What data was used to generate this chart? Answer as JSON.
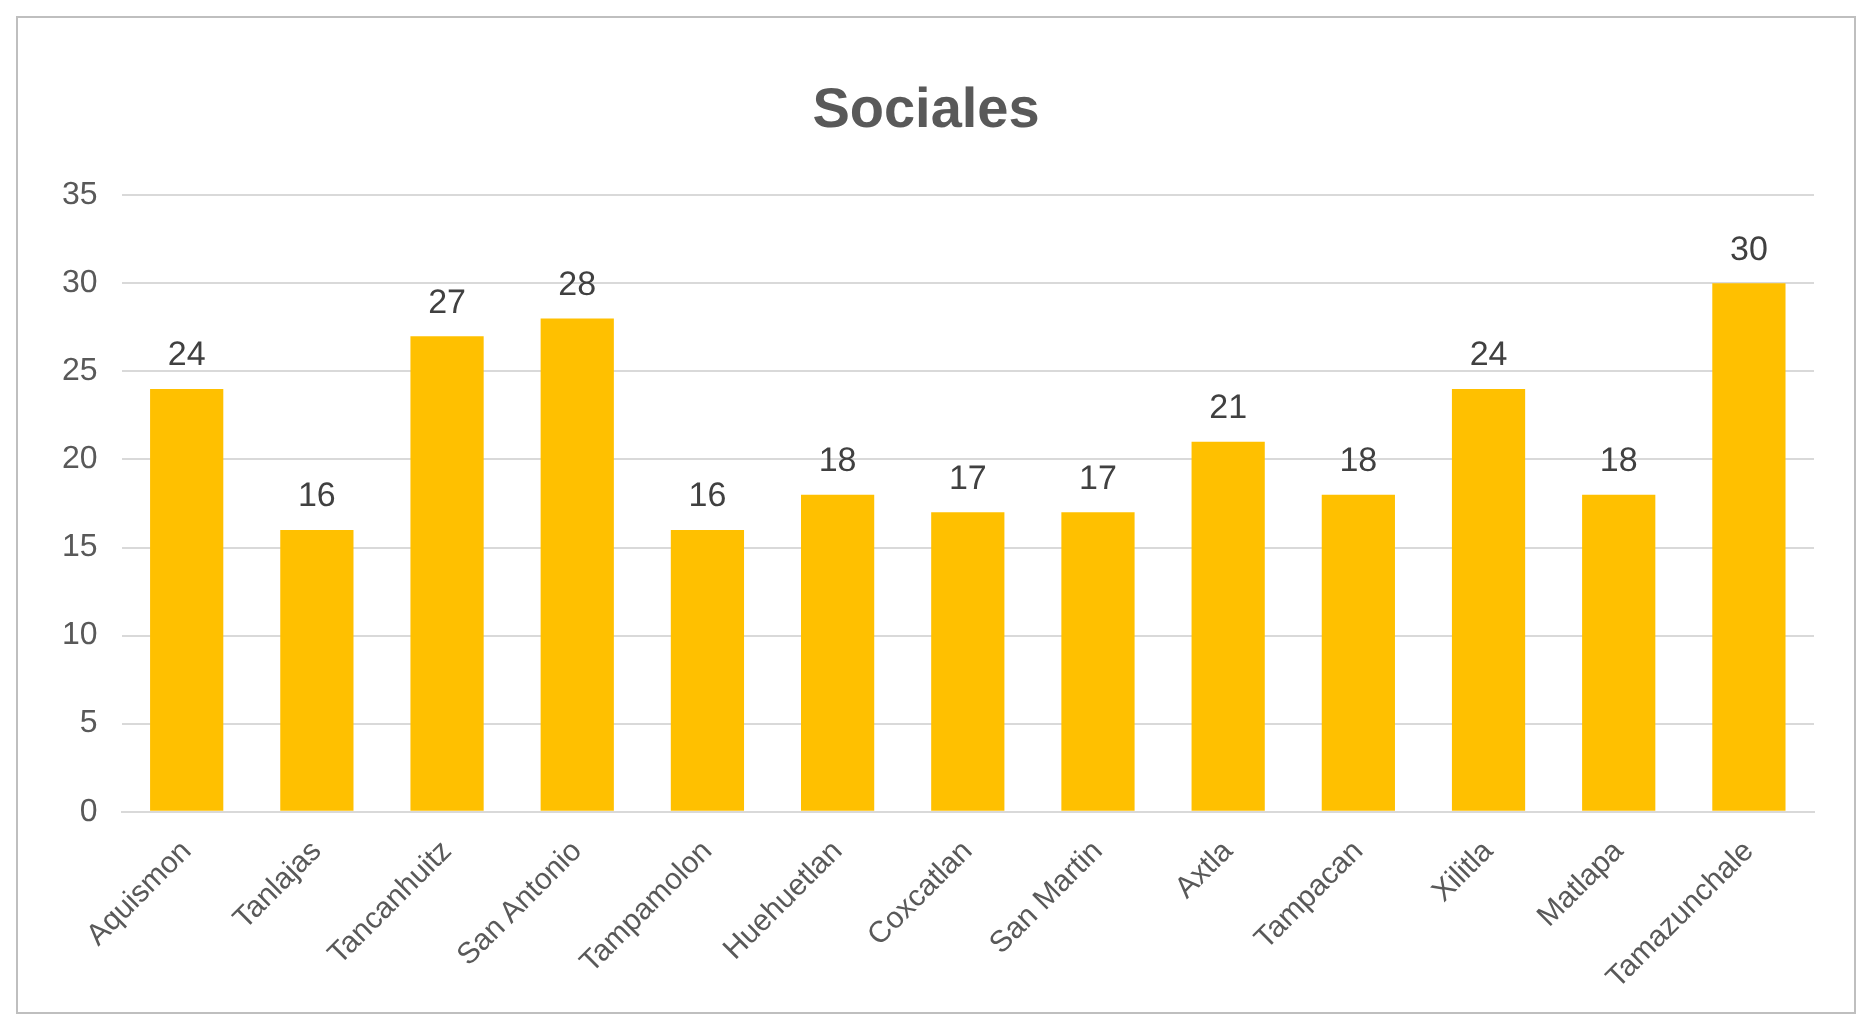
{
  "chart_data": {
    "type": "bar",
    "title": "Sociales",
    "categories": [
      "Aquismon",
      "Tanlajas",
      "Tancanhuitz",
      "San Antonio",
      "Tampamolon",
      "Huehuetlan",
      "Coxcatlan",
      "San Martin",
      "Axtla",
      "Tampacan",
      "Xilitla",
      "Matlapa",
      "Tamazunchale"
    ],
    "values": [
      24,
      16,
      27,
      28,
      16,
      18,
      17,
      17,
      21,
      18,
      24,
      18,
      30
    ],
    "color": "#ffc000",
    "ylim": [
      0,
      35
    ],
    "yticks": [
      0,
      5,
      10,
      15,
      20,
      25,
      30,
      35
    ],
    "grid": "y",
    "data_labels": true
  }
}
